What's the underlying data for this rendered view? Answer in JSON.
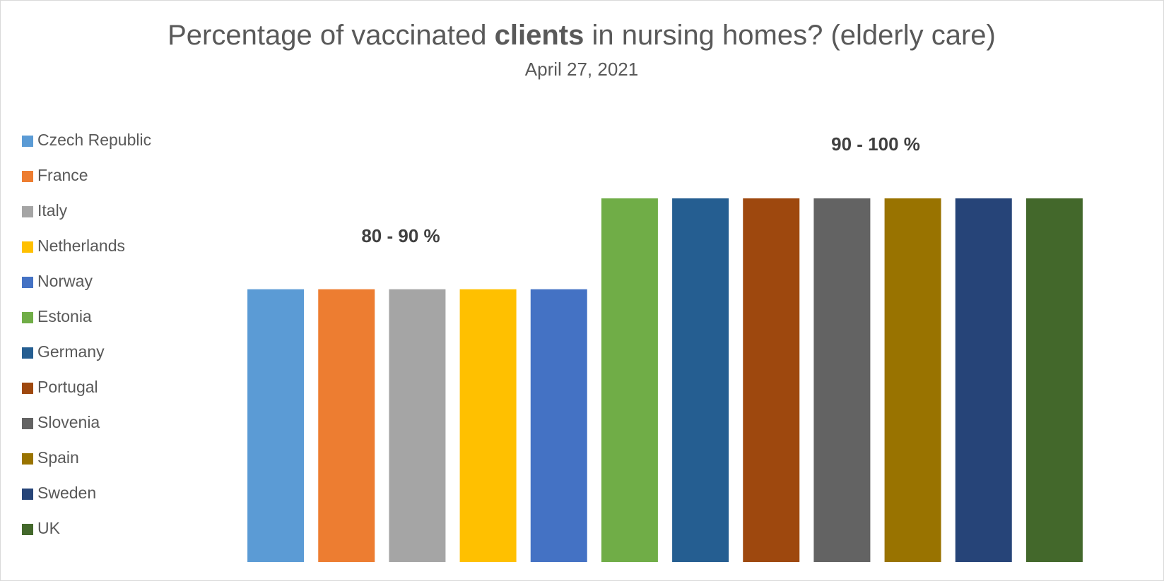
{
  "chart_data": {
    "type": "bar",
    "title": [
      "Percentage of vaccinated ",
      "clients",
      " in nursing homes? (elderly care)"
    ],
    "subtitle": "April 27, 2021",
    "categories": [
      "Czech Republic",
      "France",
      "Italy",
      "Netherlands",
      "Norway",
      "Estonia",
      "Germany",
      "Portugal",
      "Slovenia",
      "Spain",
      "Sweden",
      "UK"
    ],
    "values": [
      85,
      85,
      85,
      85,
      85,
      95,
      95,
      95,
      95,
      95,
      95,
      95
    ],
    "colors": [
      "#5b9bd5",
      "#ed7d31",
      "#a5a5a5",
      "#ffc000",
      "#4472c4",
      "#70ad47",
      "#255e91",
      "#9e480e",
      "#636363",
      "#997300",
      "#264478",
      "#43682b"
    ],
    "ylim": [
      55,
      115
    ],
    "annotations": [
      "80 - 90 %",
      "90 - 100 %"
    ],
    "legend": "left"
  }
}
